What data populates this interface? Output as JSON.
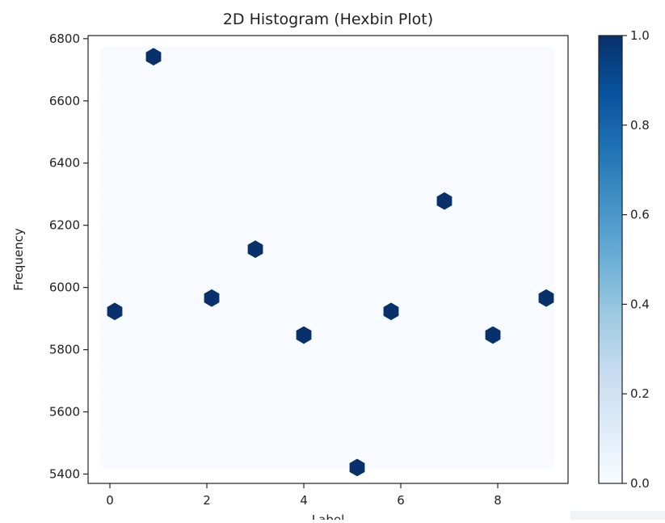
{
  "chart_data": {
    "type": "heatmap",
    "subtype": "hexbin",
    "title": "2D Histogram (Hexbin Plot)",
    "xlabel": "Label",
    "ylabel": "Frequency",
    "xlim": [
      -0.45,
      9.45
    ],
    "ylim": [
      5370,
      6810
    ],
    "xticks": [
      0,
      2,
      4,
      6,
      8
    ],
    "yticks": [
      5400,
      5600,
      5800,
      6000,
      6200,
      6400,
      6600,
      6800
    ],
    "colormap": "Blues",
    "colorbar": {
      "range": [
        0.0,
        1.0
      ],
      "ticks": [
        "0.0",
        "0.2",
        "0.4",
        "0.6",
        "0.8",
        "1.0"
      ]
    },
    "empty_color": "#f7fbff",
    "filled_color": "#08306b",
    "points": [
      {
        "x": 0.1,
        "y": 5923,
        "count": 1
      },
      {
        "x": 0.9,
        "y": 6742,
        "count": 1
      },
      {
        "x": 2.1,
        "y": 5966,
        "count": 1
      },
      {
        "x": 3.0,
        "y": 6123,
        "count": 1
      },
      {
        "x": 4.0,
        "y": 5847,
        "count": 1
      },
      {
        "x": 5.1,
        "y": 5421,
        "count": 1
      },
      {
        "x": 5.8,
        "y": 5923,
        "count": 1
      },
      {
        "x": 6.9,
        "y": 6278,
        "count": 1
      },
      {
        "x": 7.9,
        "y": 5847,
        "count": 1
      },
      {
        "x": 9.0,
        "y": 5966,
        "count": 1
      }
    ],
    "grid": false
  }
}
